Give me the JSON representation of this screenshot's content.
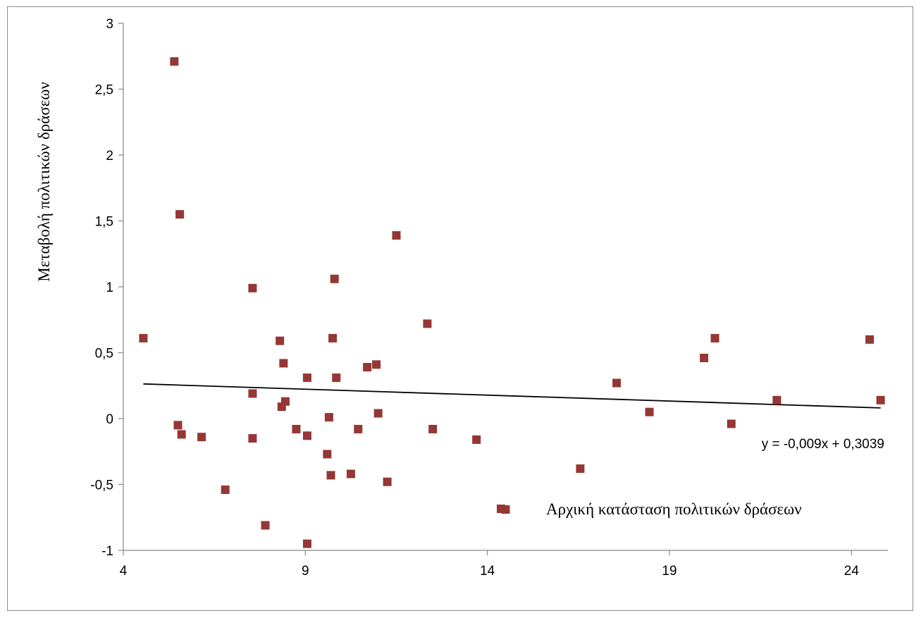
{
  "chart_data": {
    "type": "scatter",
    "title": "",
    "xlabel": "",
    "ylabel": "Μεταβολή πολιτικών δράσεων",
    "xlim": [
      4,
      25
    ],
    "ylim": [
      -1,
      3
    ],
    "x_ticks": [
      4,
      9,
      14,
      19,
      24
    ],
    "y_ticks": [
      -1,
      -0.5,
      0,
      0.5,
      1,
      1.5,
      2,
      2.5,
      3
    ],
    "x_tick_labels": [
      "4",
      "9",
      "14",
      "19",
      "24"
    ],
    "y_tick_labels": [
      "-1",
      "-0,5",
      "0",
      "0,5",
      "1",
      "1,5",
      "2",
      "2,5",
      "3"
    ],
    "grid": false,
    "legend_position": "bottom-right",
    "series": [
      {
        "name": "Αρχική κατάσταση πολιτικών δράσεων",
        "color": "#953735",
        "marker": "square",
        "x": [
          4.55,
          5.4,
          5.5,
          5.55,
          5.6,
          6.15,
          6.8,
          7.55,
          7.55,
          7.55,
          7.9,
          8.3,
          8.35,
          8.4,
          8.45,
          8.75,
          9.05,
          9.05,
          9.05,
          9.6,
          9.65,
          9.7,
          9.75,
          9.8,
          9.85,
          10.25,
          10.45,
          10.7,
          10.95,
          11.0,
          11.25,
          11.5,
          12.35,
          12.5,
          13.7,
          14.5,
          16.55,
          17.55,
          18.45,
          19.95,
          20.25,
          20.7,
          21.95,
          24.5,
          24.8
        ],
        "y": [
          0.61,
          2.71,
          -0.05,
          1.55,
          -0.12,
          -0.14,
          -0.54,
          0.99,
          0.19,
          -0.15,
          -0.81,
          0.59,
          0.09,
          0.42,
          0.13,
          -0.08,
          0.31,
          -0.13,
          -0.95,
          -0.27,
          0.01,
          -0.43,
          0.61,
          1.06,
          0.31,
          -0.42,
          -0.08,
          0.39,
          0.41,
          0.04,
          -0.48,
          1.39,
          0.72,
          -0.08,
          -0.16,
          -0.69,
          -0.38,
          0.27,
          0.05,
          0.46,
          0.61,
          -0.04,
          0.14,
          0.6,
          0.14
        ]
      }
    ],
    "trendline": {
      "type": "linear",
      "slope": -0.009,
      "intercept": 0.3039,
      "x_range": [
        4.55,
        24.8
      ],
      "color": "#000000",
      "equation_label": "y = -0,009x + 0,3039"
    }
  }
}
